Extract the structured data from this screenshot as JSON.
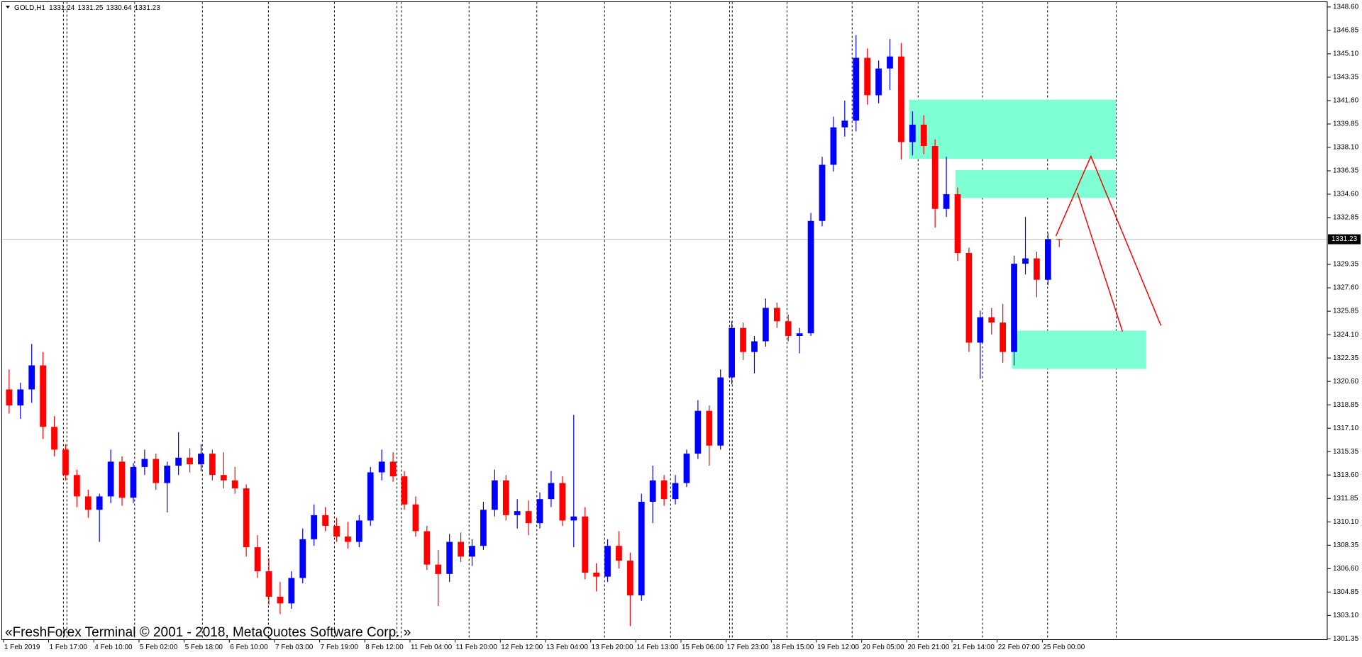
{
  "chart_data": {
    "type": "candlestick",
    "symbol": "GOLD,H1",
    "watermark": "«FreshForex Terminal © 2001 - 2018, MetaQuotes Software Corp. »",
    "up_color": "#0000ff",
    "down_color": "#ff0000",
    "grid": false,
    "categories": [
      "1 Feb 2019",
      null,
      null,
      null,
      "1 Feb 17:00",
      null,
      null,
      null,
      "4 Feb 10:00",
      null,
      null,
      null,
      "5 Feb 02:00",
      null,
      null,
      null,
      "5 Feb 18:00",
      null,
      null,
      null,
      "6 Feb 10:00",
      null,
      null,
      null,
      "7 Feb 03:00",
      null,
      null,
      null,
      "7 Feb 19:00",
      null,
      null,
      null,
      "8 Feb 12:00",
      null,
      null,
      null,
      "11 Feb 04:00",
      null,
      null,
      null,
      "11 Feb 20:00",
      null,
      null,
      null,
      "12 Feb 12:00",
      null,
      null,
      null,
      "13 Feb 04:00",
      null,
      null,
      null,
      "13 Feb 20:00",
      null,
      null,
      null,
      "14 Feb 13:00",
      null,
      null,
      null,
      "15 Feb 06:00",
      null,
      null,
      null,
      "17 Feb 23:00",
      null,
      null,
      null,
      "18 Feb 15:00",
      null,
      null,
      null,
      "19 Feb 12:00",
      null,
      null,
      null,
      "20 Feb 05:00",
      null,
      null,
      null,
      "20 Feb 21:00",
      null,
      null,
      null,
      "21 Feb 14:00",
      null,
      null,
      null,
      "22 Feb 07:00",
      null,
      null,
      null,
      "25 Feb 00:00",
      null
    ],
    "open": [
      1320.0,
      1318.8,
      1320.0,
      1321.8,
      1317.2,
      1315.5,
      1313.6,
      1312.0,
      1311.0,
      1312.0,
      1314.6,
      1311.9,
      1314.2,
      1314.8,
      1313.0,
      1314.3,
      1314.9,
      1314.4,
      1315.2,
      1313.6,
      1313.2,
      1312.6,
      1308.2,
      1306.4,
      1304.5,
      1304.0,
      1305.9,
      1308.8,
      1310.6,
      1309.8,
      1309.0,
      1308.6,
      1310.2,
      1313.8,
      1314.6,
      1313.5,
      1311.4,
      1309.4,
      1306.9,
      1306.2,
      1308.6,
      1307.5,
      1308.3,
      1311.0,
      1313.2,
      1310.6,
      1310.9,
      1310.0,
      1311.8,
      1313.0,
      1310.2,
      1310.5,
      1306.3,
      1306.0,
      1308.3,
      1307.2,
      1304.6,
      1311.6,
      1313.2,
      1311.8,
      1313.0,
      1315.2,
      1318.4,
      1315.8,
      1320.9,
      1324.6,
      1322.8,
      1323.6,
      1326.1,
      1325.1,
      1324.0,
      1324.2,
      1332.6,
      1336.8,
      1339.6,
      1340.1,
      1344.8,
      1342.0,
      1344.0,
      1344.9,
      1338.5,
      1339.8,
      1338.2,
      1333.5,
      1334.6,
      1330.2,
      1323.5,
      1325.4,
      1325.0,
      1322.8,
      1329.4,
      1329.8,
      1328.2,
      1331.24
    ],
    "high": [
      1321.5,
      1320.5,
      1323.4,
      1322.8,
      1318.0,
      1315.9,
      1314.0,
      1312.5,
      1312.2,
      1315.5,
      1315.0,
      1314.5,
      1315.5,
      1315.2,
      1314.6,
      1316.8,
      1315.6,
      1315.9,
      1315.5,
      1315.3,
      1314.2,
      1312.9,
      1309.1,
      1307.4,
      1305.6,
      1306.4,
      1309.6,
      1311.4,
      1311.2,
      1310.4,
      1310.1,
      1310.6,
      1314.2,
      1315.5,
      1315.3,
      1313.9,
      1312.0,
      1309.8,
      1308.0,
      1309.2,
      1309.3,
      1308.8,
      1311.6,
      1314.0,
      1313.6,
      1311.8,
      1311.7,
      1312.3,
      1313.9,
      1313.5,
      1318.1,
      1311.2,
      1307.0,
      1308.8,
      1309.4,
      1307.8,
      1312.2,
      1314.3,
      1313.6,
      1313.6,
      1315.5,
      1319.2,
      1318.8,
      1321.5,
      1325.1,
      1325.0,
      1324.0,
      1326.8,
      1326.5,
      1325.6,
      1324.6,
      1333.2,
      1337.4,
      1340.4,
      1341.6,
      1346.5,
      1345.5,
      1344.6,
      1346.2,
      1345.9,
      1340.8,
      1340.5,
      1338.7,
      1337.4,
      1335.1,
      1330.6,
      1325.9,
      1326.1,
      1326.4,
      1330.0,
      1332.9,
      1330.3,
      1331.7,
      1331.25
    ],
    "low": [
      1318.2,
      1317.8,
      1319.0,
      1316.3,
      1315.0,
      1313.2,
      1311.2,
      1310.4,
      1308.6,
      1311.5,
      1311.3,
      1311.5,
      1313.6,
      1312.5,
      1310.8,
      1313.6,
      1313.8,
      1313.9,
      1313.2,
      1312.6,
      1312.2,
      1307.5,
      1305.9,
      1303.9,
      1303.2,
      1303.6,
      1305.5,
      1308.3,
      1309.4,
      1308.6,
      1308.1,
      1308.2,
      1309.8,
      1313.2,
      1313.1,
      1311.0,
      1309.0,
      1306.5,
      1303.8,
      1305.6,
      1307.1,
      1306.8,
      1308.0,
      1310.5,
      1310.2,
      1309.6,
      1309.1,
      1309.6,
      1311.2,
      1309.8,
      1308.2,
      1305.8,
      1304.9,
      1305.6,
      1306.6,
      1302.3,
      1304.2,
      1310.0,
      1311.3,
      1311.4,
      1312.7,
      1314.8,
      1314.3,
      1315.5,
      1320.4,
      1322.2,
      1321.2,
      1323.2,
      1324.6,
      1323.6,
      1322.7,
      1324.0,
      1332.2,
      1336.3,
      1338.9,
      1339.3,
      1341.3,
      1341.4,
      1342.4,
      1337.2,
      1337.5,
      1337.6,
      1332.1,
      1332.9,
      1329.6,
      1322.8,
      1320.8,
      1324.1,
      1322.0,
      1321.8,
      1328.6,
      1326.9,
      1327.8,
      1330.64
    ],
    "close": [
      1318.8,
      1320.0,
      1321.8,
      1317.2,
      1315.5,
      1313.6,
      1312.0,
      1311.0,
      1312.0,
      1314.6,
      1311.9,
      1314.2,
      1314.8,
      1313.0,
      1314.3,
      1314.9,
      1314.4,
      1315.2,
      1313.6,
      1313.2,
      1312.6,
      1308.2,
      1306.4,
      1304.5,
      1304.0,
      1305.9,
      1308.8,
      1310.6,
      1309.8,
      1309.0,
      1308.6,
      1310.2,
      1313.8,
      1314.6,
      1313.5,
      1311.4,
      1309.4,
      1306.9,
      1306.2,
      1308.6,
      1307.5,
      1308.3,
      1311.0,
      1313.2,
      1310.6,
      1310.9,
      1310.0,
      1311.8,
      1313.0,
      1310.2,
      1310.5,
      1306.3,
      1306.0,
      1308.3,
      1307.2,
      1304.6,
      1311.6,
      1313.2,
      1311.8,
      1313.0,
      1315.2,
      1318.4,
      1315.8,
      1320.9,
      1324.6,
      1322.8,
      1323.6,
      1326.1,
      1325.1,
      1324.0,
      1324.2,
      1332.6,
      1336.8,
      1339.6,
      1340.1,
      1344.8,
      1342.0,
      1344.0,
      1344.9,
      1338.5,
      1339.8,
      1338.2,
      1333.5,
      1334.6,
      1330.2,
      1323.5,
      1325.4,
      1325.0,
      1322.8,
      1329.4,
      1329.8,
      1328.2,
      1331.24,
      1331.23
    ],
    "ylim": [
      1301.29,
      1348.99
    ],
    "yticks": [
      {
        "value": 1348.6,
        "label": "1348.60"
      },
      1346.85,
      {
        "value": 1345.1,
        "label": "1345.10"
      },
      1343.35,
      {
        "value": 1341.6,
        "label": "1341.60"
      },
      1339.85,
      {
        "value": 1338.1,
        "label": "1338.10"
      },
      1336.35,
      {
        "value": 1334.6,
        "label": "1334.60"
      },
      1332.85,
      1329.35,
      {
        "value": 1327.6,
        "label": "1327.60"
      },
      1325.85,
      {
        "value": 1324.1,
        "label": "1324.10"
      },
      1322.35,
      {
        "value": 1320.6,
        "label": "1320.60"
      },
      1318.85,
      {
        "value": 1317.1,
        "label": "1317.10"
      },
      1315.35,
      {
        "value": 1313.6,
        "label": "1313.60"
      },
      1311.85,
      {
        "value": 1310.1,
        "label": "1310.10"
      },
      1308.35,
      {
        "value": 1306.6,
        "label": "1306.60"
      },
      1304.85,
      {
        "value": 1303.1,
        "label": "1303.10"
      },
      1301.35
    ],
    "zone_color": "#7fffd4",
    "zones": [
      {
        "x": [
          80.2,
          98.5
        ],
        "y": [
          1337.24,
          1341.66
        ]
      },
      {
        "x": [
          84.3,
          98.5
        ],
        "y": [
          1334.32,
          1336.4
        ]
      },
      {
        "x": [
          89.3,
          101.2
        ],
        "y": [
          1321.54,
          1324.4
        ]
      }
    ],
    "line_color": "#ff0000",
    "lines": [
      {
        "x": [
          93.2,
          96.3,
          102.5
        ],
        "y": [
          1331.47,
          1337.44,
          1324.78
        ]
      },
      {
        "x": [
          95.1,
          99.1
        ],
        "y": [
          1334.71,
          1324.33
        ]
      }
    ]
  }
}
